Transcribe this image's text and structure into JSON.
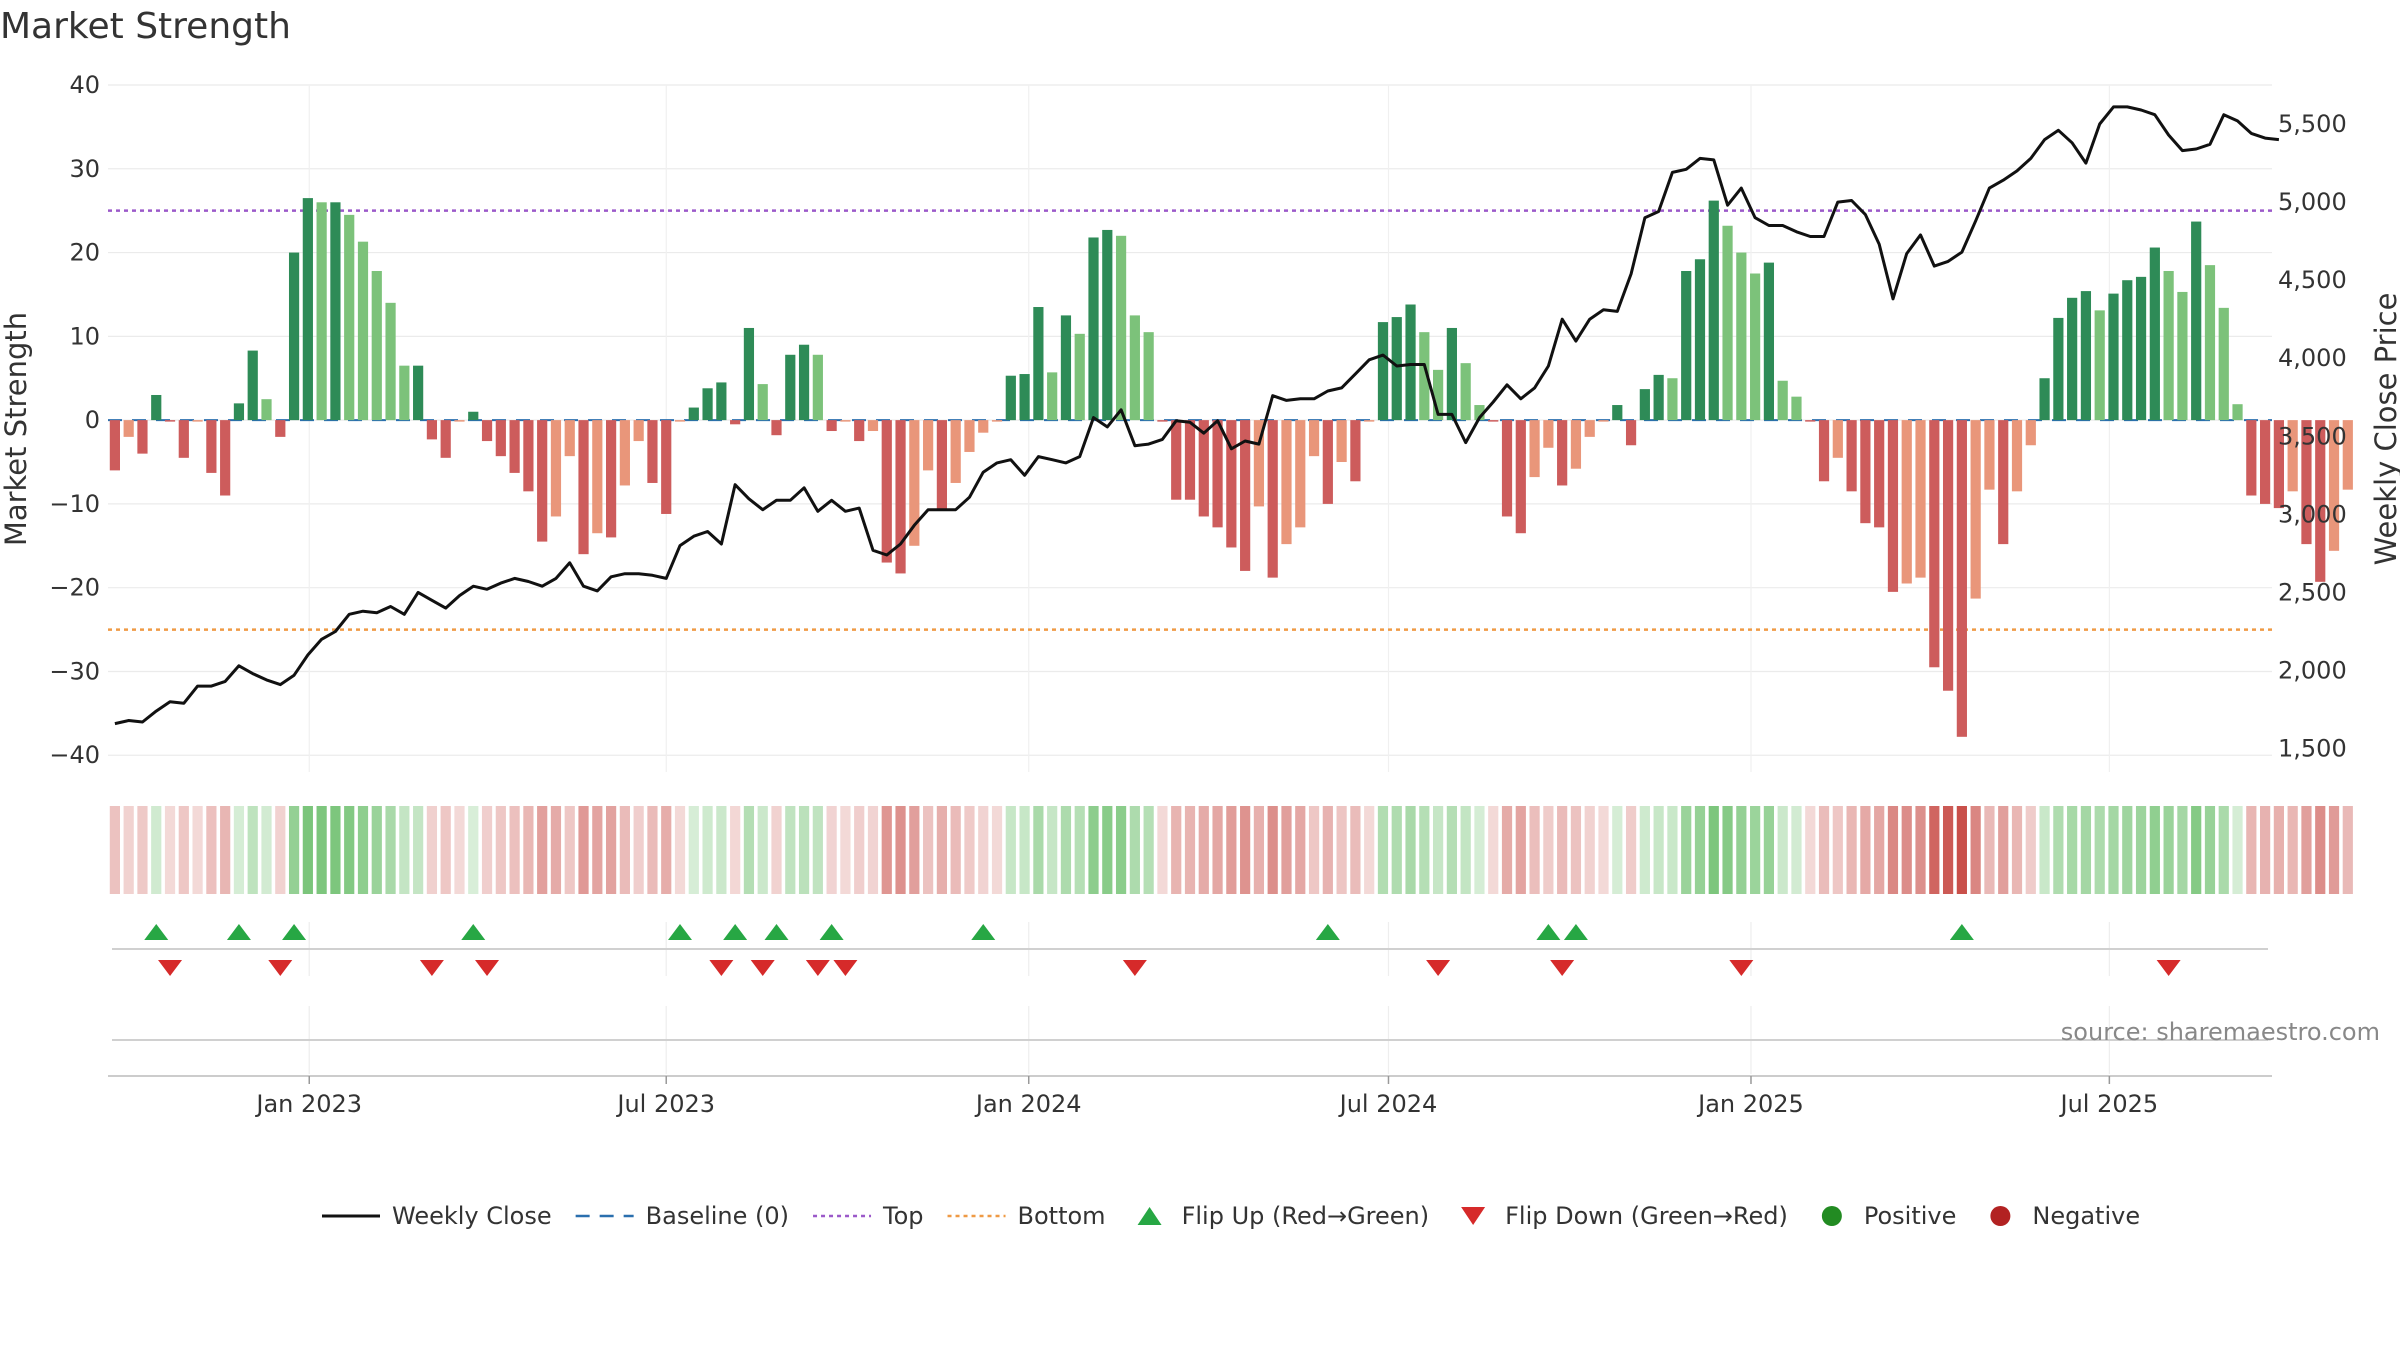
{
  "chart_data": {
    "type": "bar",
    "title": "Market Strength",
    "ylabel": "Market Strength",
    "y2label": "Weekly Close Price",
    "source": "source: sharemaestro.com",
    "ylim": [
      -42,
      40
    ],
    "y2lim": [
      1350,
      5750
    ],
    "yticks": [
      40,
      30,
      20,
      10,
      0,
      -10,
      -20,
      -30,
      -40
    ],
    "y2ticks": [
      5500,
      5000,
      4500,
      4000,
      3500,
      3000,
      2500,
      2000,
      1500
    ],
    "y2tick_labels": [
      "5,500",
      "5,000",
      "4,500",
      "4,000",
      "3,500",
      "3,000",
      "2,500",
      "2,000",
      "1,500"
    ],
    "top_level": 25,
    "bottom_level": -25,
    "xlim_weeks": [
      0,
      157
    ],
    "x_ticks": [
      {
        "label": "Jan 2023",
        "week": 14.6
      },
      {
        "label": "Jul 2023",
        "week": 40.5
      },
      {
        "label": "Jan 2024",
        "week": 66.8
      },
      {
        "label": "Jul 2024",
        "week": 92.9
      },
      {
        "label": "Jan 2025",
        "week": 119.2
      },
      {
        "label": "Jul 2025",
        "week": 145.2
      }
    ],
    "strength": [
      -6,
      -2,
      -4,
      3,
      0,
      -4.5,
      0,
      -6.3,
      -9,
      2,
      8.3,
      2.5,
      -2,
      20,
      26.5,
      26,
      26,
      24.5,
      21.3,
      17.8,
      14,
      6.5,
      6.5,
      -2.3,
      -4.5,
      0,
      1,
      -2.5,
      -4.3,
      -6.3,
      -8.5,
      -14.5,
      -11.5,
      -4.3,
      -16,
      -13.5,
      -14,
      -7.8,
      -2.5,
      -7.5,
      -11.2,
      0,
      1.5,
      3.8,
      4.5,
      -0.5,
      11,
      4.3,
      -1.8,
      7.8,
      9,
      7.8,
      -1.3,
      0,
      -2.5,
      -1.3,
      -17,
      -18.3,
      -15,
      -6,
      -10.8,
      -7.5,
      -3.8,
      -1.5,
      0,
      5.3,
      5.5,
      13.5,
      5.7,
      12.5,
      10.3,
      21.8,
      22.7,
      22,
      12.5,
      10.5,
      0,
      -9.5,
      -9.5,
      -11.5,
      -12.8,
      -15.2,
      -18,
      -10.3,
      -18.8,
      -14.8,
      -12.8,
      -4.3,
      -10,
      -5,
      -7.3,
      0,
      11.7,
      12.3,
      13.8,
      10.5,
      6,
      11,
      6.8,
      1.8,
      0,
      -11.5,
      -13.5,
      -6.8,
      -3.3,
      -7.8,
      -5.8,
      -2,
      0,
      1.8,
      -3,
      3.7,
      5.4,
      5,
      17.8,
      19.2,
      26.2,
      23.2,
      20,
      17.5,
      18.8,
      4.7,
      2.8,
      0,
      -7.3,
      -4.5,
      -8.5,
      -12.3,
      -12.8,
      -20.5,
      -19.5,
      -18.8,
      -29.5,
      -32.3,
      -37.8,
      -21.3,
      -8.3,
      -14.8,
      -8.5,
      -3,
      5,
      12.2,
      14.6,
      15.4,
      13.1,
      15.1,
      16.7,
      17.1,
      20.6,
      17.8,
      15.3,
      23.7,
      18.5,
      13.4,
      1.9,
      -9,
      -10,
      -10.5,
      -8.5,
      -14.8,
      -19.3,
      -15.6,
      -8.3
    ],
    "weekly_close": [
      1660,
      1680,
      1670,
      1740,
      1800,
      1790,
      1900,
      1900,
      1930,
      2030,
      1980,
      1940,
      1910,
      1970,
      2100,
      2200,
      2250,
      2360,
      2380,
      2370,
      2410,
      2360,
      2500,
      2450,
      2400,
      2480,
      2540,
      2520,
      2560,
      2590,
      2570,
      2540,
      2590,
      2690,
      2540,
      2510,
      2600,
      2620,
      2620,
      2610,
      2590,
      2800,
      2860,
      2890,
      2810,
      3190,
      3100,
      3030,
      3090,
      3090,
      3170,
      3020,
      3090,
      3020,
      3040,
      2770,
      2740,
      2810,
      2930,
      3030,
      3030,
      3030,
      3110,
      3270,
      3330,
      3350,
      3250,
      3370,
      3350,
      3330,
      3370,
      3620,
      3560,
      3670,
      3440,
      3450,
      3480,
      3600,
      3590,
      3520,
      3600,
      3420,
      3470,
      3450,
      3760,
      3730,
      3740,
      3740,
      3790,
      3810,
      3900,
      3990,
      4020,
      3950,
      3960,
      3960,
      3640,
      3640,
      3460,
      3620,
      3720,
      3830,
      3740,
      3810,
      3950,
      4250,
      4110,
      4250,
      4310,
      4300,
      4540,
      4900,
      4940,
      5190,
      5210,
      5280,
      5270,
      4980,
      5090,
      4900,
      4850,
      4850,
      4810,
      4780,
      4780,
      5000,
      5010,
      4920,
      4730,
      4380,
      4670,
      4790,
      4590,
      4620,
      4680,
      4880,
      5090,
      5140,
      5200,
      5280,
      5400,
      5460,
      5380,
      5250,
      5500,
      5610,
      5610,
      5590,
      5560,
      5430,
      5330,
      5340,
      5370,
      5560,
      5520,
      5440,
      5410,
      5400
    ],
    "flip_up_weeks": [
      3,
      9,
      13,
      26,
      41,
      45,
      48,
      52,
      63,
      88,
      104,
      106,
      134
    ],
    "flip_down_weeks": [
      4,
      12,
      23,
      27,
      44,
      47,
      51,
      53,
      74,
      96,
      105,
      118,
      149
    ],
    "legend": [
      {
        "label": "Weekly Close",
        "style": "line",
        "color": "#111111"
      },
      {
        "label": "Baseline (0)",
        "style": "dash",
        "color": "#2a6fae"
      },
      {
        "label": "Top",
        "style": "dot",
        "color": "#9b59c9"
      },
      {
        "label": "Bottom",
        "style": "dot",
        "color": "#ef9a45"
      },
      {
        "label": "Flip Up (Red→Green)",
        "style": "tri-up",
        "color": "#27a744"
      },
      {
        "label": "Flip Down (Green→Red)",
        "style": "tri-down",
        "color": "#d62a2a"
      },
      {
        "label": "Positive",
        "style": "circle",
        "color": "#228b22"
      },
      {
        "label": "Negative",
        "style": "circle",
        "color": "#b22222"
      }
    ],
    "colors": {
      "pos_strong": "#2e8b57",
      "pos_light": "#7cc27a",
      "neg_strong": "#cd5c5c",
      "neg_light": "#e9967a",
      "close_line": "#111111",
      "baseline": "#2a6fae",
      "top_line": "#9b59c9",
      "bottom_line": "#ef9a45",
      "flip_up": "#27a744",
      "flip_down": "#d62a2a"
    }
  }
}
